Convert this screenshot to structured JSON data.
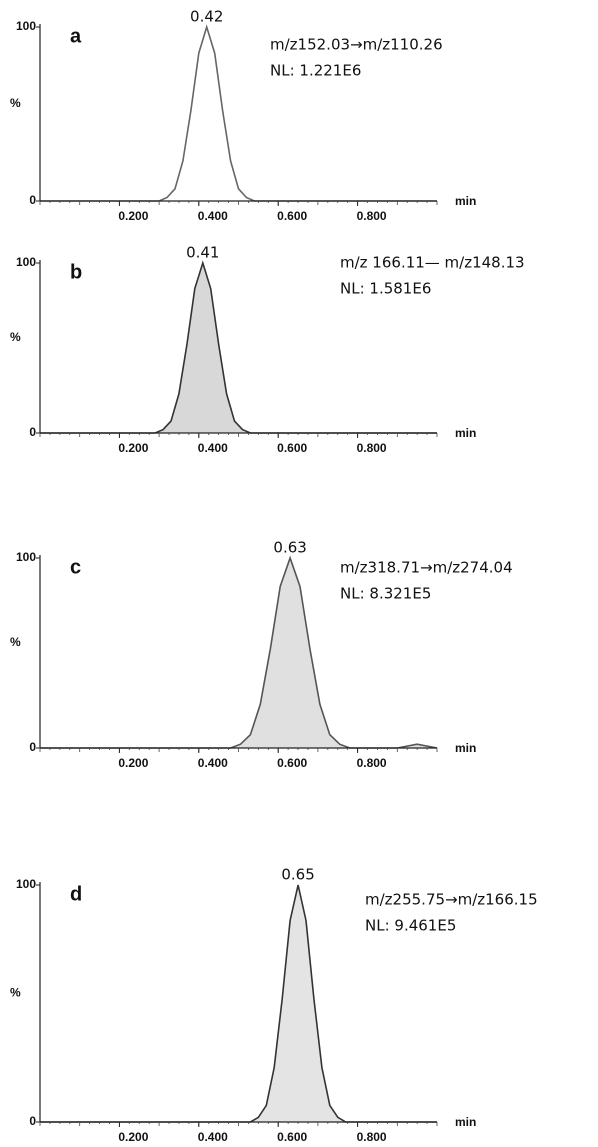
{
  "chart_data": [
    {
      "type": "line",
      "label": "a",
      "transition": "m/z152.03→m/z110.26",
      "nl": "NL: 1.221E6",
      "peak": 0.42,
      "x": [
        0,
        0.3,
        0.32,
        0.34,
        0.36,
        0.38,
        0.4,
        0.42,
        0.44,
        0.46,
        0.48,
        0.5,
        0.52,
        0.54,
        1.0
      ],
      "values": [
        0,
        0,
        2,
        7,
        23,
        52,
        85,
        100,
        85,
        52,
        23,
        7,
        2,
        0,
        0
      ],
      "color": "#666",
      "fill": null,
      "xlabel": "min",
      "ylabel": "%",
      "xlim": [
        0,
        1.0
      ],
      "ylim": [
        0,
        100
      ],
      "yticks": [
        0,
        100
      ],
      "xticks": [
        {
          "value": 0.2,
          "label": "0.200"
        },
        {
          "value": 0.4,
          "label": "0.400"
        },
        {
          "value": 0.6,
          "label": "0.600"
        },
        {
          "value": 0.8,
          "label": "0.800"
        }
      ]
    },
    {
      "type": "line",
      "label": "b",
      "transition": "m/z 166.11— m/z148.13",
      "nl": "NL: 1.581E6",
      "peak": 0.41,
      "x": [
        0,
        0.29,
        0.31,
        0.33,
        0.35,
        0.37,
        0.39,
        0.41,
        0.43,
        0.45,
        0.47,
        0.49,
        0.51,
        0.53,
        1.0
      ],
      "values": [
        0,
        0,
        2,
        7,
        23,
        52,
        85,
        100,
        85,
        52,
        23,
        7,
        2,
        0,
        0
      ],
      "color": "#333",
      "fill": "#d8d8d8",
      "xlabel": "min",
      "ylabel": "%",
      "xlim": [
        0,
        1.0
      ],
      "ylim": [
        0,
        100
      ],
      "yticks": [
        0,
        100
      ],
      "xticks": [
        {
          "value": 0.2,
          "label": "0.200"
        },
        {
          "value": 0.4,
          "label": "0.400"
        },
        {
          "value": 0.6,
          "label": "0.600"
        },
        {
          "value": 0.8,
          "label": "0.800"
        }
      ]
    },
    {
      "type": "line",
      "label": "c",
      "transition": "m/z318.71→m/z274.04",
      "nl": "NL: 8.321E5",
      "peak": 0.63,
      "x": [
        0,
        0.48,
        0.505,
        0.53,
        0.555,
        0.58,
        0.605,
        0.63,
        0.655,
        0.68,
        0.705,
        0.73,
        0.755,
        0.78,
        0.9,
        0.95,
        1.0
      ],
      "values": [
        0,
        0,
        2,
        7,
        23,
        52,
        85,
        100,
        85,
        52,
        23,
        7,
        2,
        0,
        0,
        2,
        0
      ],
      "color": "#555",
      "fill": "#e0e0e0",
      "xlabel": "min",
      "ylabel": "%",
      "xlim": [
        0,
        1.0
      ],
      "ylim": [
        0,
        100
      ],
      "yticks": [
        0,
        100
      ],
      "xticks": [
        {
          "value": 0.2,
          "label": "0.200"
        },
        {
          "value": 0.4,
          "label": "0.400"
        },
        {
          "value": 0.6,
          "label": "0.600"
        },
        {
          "value": 0.8,
          "label": "0.800"
        }
      ]
    },
    {
      "type": "line",
      "label": "d",
      "transition": "m/z255.75→m/z166.15",
      "nl": "NL: 9.461E5",
      "peak": 0.65,
      "x": [
        0,
        0.53,
        0.55,
        0.57,
        0.59,
        0.61,
        0.63,
        0.65,
        0.67,
        0.69,
        0.71,
        0.73,
        0.75,
        0.77,
        1.0
      ],
      "values": [
        0,
        0,
        2,
        7,
        23,
        52,
        85,
        100,
        85,
        52,
        23,
        7,
        2,
        0,
        0
      ],
      "color": "#333",
      "fill": "#e4e4e4",
      "xlabel": "min",
      "ylabel": "%",
      "xlim": [
        0,
        1.0
      ],
      "ylim": [
        0,
        100
      ],
      "yticks": [
        0,
        100
      ],
      "xticks": [
        {
          "value": 0.2,
          "label": "0.200"
        },
        {
          "value": 0.4,
          "label": "0.400"
        },
        {
          "value": 0.6,
          "label": "0.600"
        },
        {
          "value": 0.8,
          "label": "0.800"
        }
      ]
    }
  ]
}
